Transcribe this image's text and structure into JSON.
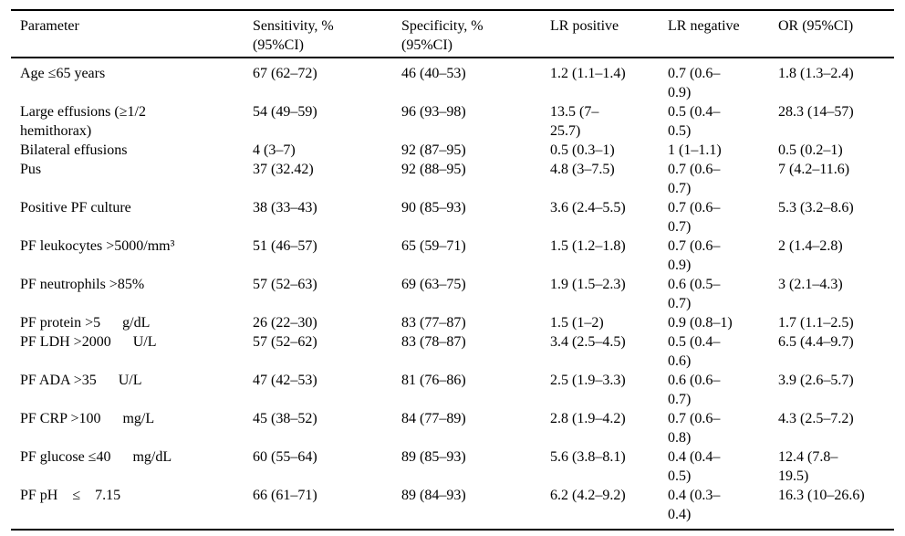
{
  "colors": {
    "text": "#000000",
    "background": "#ffffff",
    "rule": "#000000"
  },
  "table": {
    "fields": [
      "parameter",
      "sensitivity",
      "specificity",
      "lr_positive",
      "lr_negative",
      "or"
    ],
    "columns": [
      {
        "label": "Parameter"
      },
      {
        "label": "Sensitivity, %\n(95%CI)"
      },
      {
        "label": "Specificity, %\n(95%CI)"
      },
      {
        "label": "LR positive"
      },
      {
        "label": "LR negative"
      },
      {
        "label": "OR (95%CI)"
      }
    ],
    "rows": [
      {
        "parameter": "Age ≤65 years",
        "sensitivity": "67 (62–72)",
        "specificity": "46 (40–53)",
        "lr_positive": "1.2 (1.1–1.4)",
        "lr_negative": "0.7 (0.6–\n0.9)",
        "or": "1.8 (1.3–2.4)"
      },
      {
        "parameter": "Large effusions (≥1/2\nhemithorax)",
        "sensitivity": "54 (49–59)",
        "specificity": "96 (93–98)",
        "lr_positive": "13.5 (7–\n25.7)",
        "lr_negative": "0.5 (0.4–\n0.5)",
        "or": "28.3 (14–57)"
      },
      {
        "parameter": "Bilateral effusions",
        "sensitivity": "4 (3–7)",
        "specificity": "92 (87–95)",
        "lr_positive": "0.5 (0.3–1)",
        "lr_negative": "1 (1–1.1)",
        "or": "0.5 (0.2–1)"
      },
      {
        "parameter": "Pus",
        "sensitivity": "37 (32.42)",
        "specificity": "92 (88–95)",
        "lr_positive": "4.8 (3–7.5)",
        "lr_negative": "0.7 (0.6–\n0.7)",
        "or": "7 (4.2–11.6)"
      },
      {
        "parameter": "Positive PF culture",
        "sensitivity": "38 (33–43)",
        "specificity": "90 (85–93)",
        "lr_positive": "3.6 (2.4–5.5)",
        "lr_negative": "0.7 (0.6–\n0.7)",
        "or": "5.3 (3.2–8.6)"
      },
      {
        "parameter": "PF leukocytes >5000/mm³",
        "sensitivity": "51 (46–57)",
        "specificity": "65 (59–71)",
        "lr_positive": "1.5 (1.2–1.8)",
        "lr_negative": "0.7 (0.6–\n0.9)",
        "or": "2 (1.4–2.8)"
      },
      {
        "parameter": "PF neutrophils >85%",
        "sensitivity": "57 (52–63)",
        "specificity": "69 (63–75)",
        "lr_positive": "1.9 (1.5–2.3)",
        "lr_negative": "0.6 (0.5–\n0.7)",
        "or": "3 (2.1–4.3)"
      },
      {
        "parameter": "PF protein >5      g/dL",
        "sensitivity": "26 (22–30)",
        "specificity": "83 (77–87)",
        "lr_positive": "1.5 (1–2)",
        "lr_negative": "0.9 (0.8–1)",
        "or": "1.7 (1.1–2.5)"
      },
      {
        "parameter": "PF LDH >2000      U/L",
        "sensitivity": "57 (52–62)",
        "specificity": "83 (78–87)",
        "lr_positive": "3.4 (2.5–4.5)",
        "lr_negative": "0.5 (0.4–\n0.6)",
        "or": "6.5 (4.4–9.7)"
      },
      {
        "parameter": "PF ADA >35      U/L",
        "sensitivity": "47 (42–53)",
        "specificity": "81 (76–86)",
        "lr_positive": "2.5 (1.9–3.3)",
        "lr_negative": "0.6 (0.6–\n0.7)",
        "or": "3.9 (2.6–5.7)"
      },
      {
        "parameter": "PF CRP >100      mg/L",
        "sensitivity": "45 (38–52)",
        "specificity": "84 (77–89)",
        "lr_positive": "2.8 (1.9–4.2)",
        "lr_negative": "0.7 (0.6–\n0.8)",
        "or": "4.3 (2.5–7.2)"
      },
      {
        "parameter": "PF glucose ≤40      mg/dL",
        "sensitivity": "60 (55–64)",
        "specificity": "89 (85–93)",
        "lr_positive": "5.6 (3.8–8.1)",
        "lr_negative": "0.4 (0.4–\n0.5)",
        "or": "12.4 (7.8–\n19.5)"
      },
      {
        "parameter": "PF pH    ≤    7.15",
        "sensitivity": "66 (61–71)",
        "specificity": "89 (84–93)",
        "lr_positive": "6.2 (4.2–9.2)",
        "lr_negative": "0.4 (0.3–\n0.4)",
        "or": "16.3 (10–26.6)"
      }
    ]
  }
}
